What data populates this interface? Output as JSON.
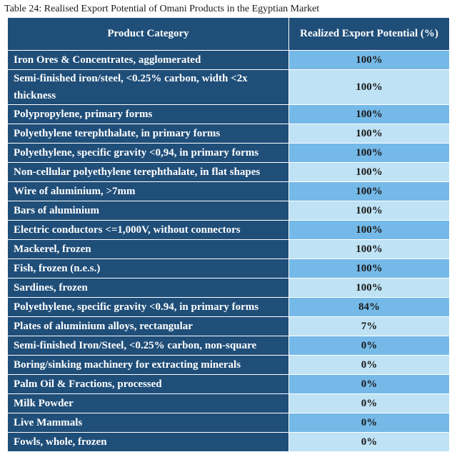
{
  "caption": "Table 24: Realised Export Potential of Omani Products in the Egyptian Market",
  "headers": {
    "category": "Product Category",
    "potential": "Realized Export Potential (%)"
  },
  "rows": [
    {
      "category": "Iron Ores & Concentrates, agglomerated",
      "potential": "100%"
    },
    {
      "category": "Semi-finished iron/steel, <0.25% carbon, width <2x thickness",
      "potential": "100%"
    },
    {
      "category": "Polypropylene, primary forms",
      "potential": "100%"
    },
    {
      "category": "Polyethylene terephthalate, in primary forms",
      "potential": "100%"
    },
    {
      "category": "Polyethylene, specific gravity <0,94, in primary forms",
      "potential": "100%"
    },
    {
      "category": "Non-cellular polyethylene terephthalate, in flat shapes",
      "potential": "100%"
    },
    {
      "category": "Wire of aluminium, >7mm",
      "potential": "100%"
    },
    {
      "category": "Bars of aluminium",
      "potential": "100%"
    },
    {
      "category": "Electric conductors <=1,000V, without connectors",
      "potential": "100%"
    },
    {
      "category": "Mackerel, frozen",
      "potential": "100%"
    },
    {
      "category": "Fish, frozen (n.e.s.)",
      "potential": "100%"
    },
    {
      "category": "Sardines, frozen",
      "potential": "100%"
    },
    {
      "category": "Polyethylene, specific gravity <0.94, in primary forms",
      "potential": "84%"
    },
    {
      "category": "Plates of aluminium alloys, rectangular",
      "potential": "7%"
    },
    {
      "category": "Semi-finished Iron/Steel, <0.25% carbon, non-square",
      "potential": "0%"
    },
    {
      "category": "Boring/sinking machinery for extracting minerals",
      "potential": "0%"
    },
    {
      "category": "Palm Oil & Fractions, processed",
      "potential": "0%"
    },
    {
      "category": "Milk Powder",
      "potential": "0%"
    },
    {
      "category": "Live Mammals",
      "potential": "0%"
    },
    {
      "category": "Fowls, whole, frozen",
      "potential": "0%"
    }
  ]
}
